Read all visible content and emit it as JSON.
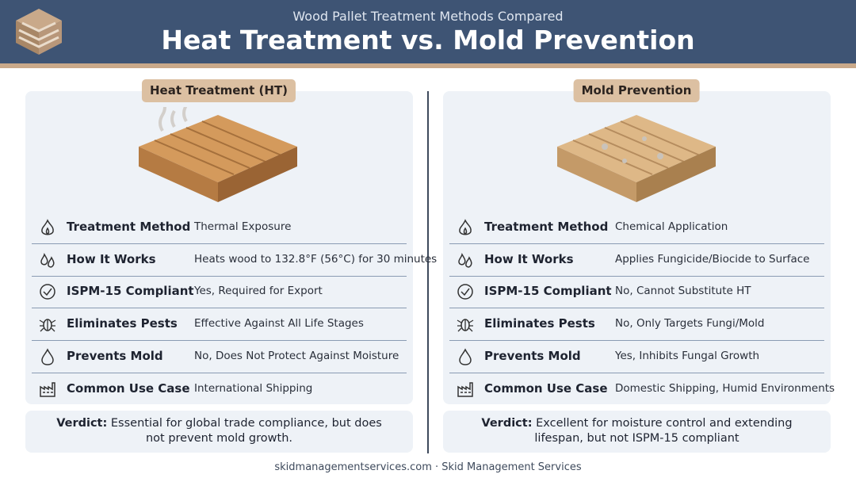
{
  "header": {
    "subtitle": "Wood Pallet Treatment Methods Compared",
    "title": "Heat Treatment vs. Mold Prevention"
  },
  "columns": [
    {
      "label": "Heat Treatment (HT)",
      "rows": [
        {
          "label": "Treatment Method",
          "value": "Thermal Exposure"
        },
        {
          "label": "How It Works",
          "value": "Heats wood to 132.8°F (56°C) for 30 minutes"
        },
        {
          "label": "ISPM-15 Compliant",
          "value": "Yes, Required for Export"
        },
        {
          "label": "Eliminates Pests",
          "value": "Effective Against All Life Stages"
        },
        {
          "label": "Prevents Mold",
          "value": "No, Does Not Protect Against Moisture"
        },
        {
          "label": "Common Use Case",
          "value": "International Shipping"
        }
      ],
      "verdict": {
        "label": "Verdict:",
        "text": "Essential for global trade compliance, but does not prevent mold growth."
      }
    },
    {
      "label": "Mold Prevention",
      "rows": [
        {
          "label": "Treatment Method",
          "value": "Chemical Application"
        },
        {
          "label": "How It Works",
          "value": "Applies Fungicide/Biocide to Surface"
        },
        {
          "label": "ISPM-15 Compliant",
          "value": "No, Cannot Substitute HT"
        },
        {
          "label": "Eliminates Pests",
          "value": "No, Only Targets Fungi/Mold"
        },
        {
          "label": "Prevents Mold",
          "value": "Yes, Inhibits Fungal Growth"
        },
        {
          "label": "Common Use Case",
          "value": "Domestic Shipping, Humid Environments"
        }
      ],
      "verdict": {
        "label": "Verdict:",
        "text": "Excellent for moisture control and extending lifespan, but not ISPM-15 compliant"
      }
    }
  ],
  "footer": "skidmanagementservices.com · Skid Management Services"
}
